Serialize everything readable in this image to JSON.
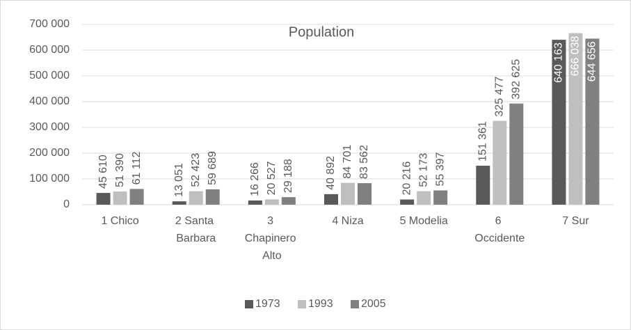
{
  "chart_data": {
    "type": "bar",
    "title": "Population",
    "categories": [
      "1 Chico",
      "2 Santa Barbara",
      "3 Chapinero Alto",
      "4 Niza",
      "5 Modelia",
      "6 Occidente",
      "7 Sur"
    ],
    "series": [
      {
        "name": "1973",
        "color": "#595959",
        "values": [
          45610,
          13051,
          16266,
          40892,
          20216,
          151361,
          640163
        ],
        "value_labels": [
          "45 610",
          "13 051",
          "16 266",
          "40 892",
          "20 216",
          "151 361",
          "640 163"
        ]
      },
      {
        "name": "1993",
        "color": "#bfbfbf",
        "values": [
          51390,
          52423,
          20527,
          84701,
          52173,
          325477,
          666038
        ],
        "value_labels": [
          "51 390",
          "52 423",
          "20 527",
          "84 701",
          "52 173",
          "325 477",
          "666 038"
        ]
      },
      {
        "name": "2005",
        "color": "#808080",
        "values": [
          61112,
          59689,
          29188,
          83562,
          55397,
          392625,
          644656
        ],
        "value_labels": [
          "61 112",
          "59 689",
          "29 188",
          "83 562",
          "55 397",
          "392 625",
          "644 656"
        ]
      }
    ],
    "ylim": [
      0,
      700000
    ],
    "yticks": [
      0,
      {
        "value": 100000,
        "label": "100 000"
      },
      {
        "value": 200000,
        "label": "200 000"
      },
      {
        "value": 300000,
        "label": "300 000"
      },
      {
        "value": 400000,
        "label": "400 000"
      },
      {
        "value": 500000,
        "label": "500 000"
      },
      {
        "value": 600000,
        "label": "600 000"
      },
      {
        "value": 700000,
        "label": "700 000"
      }
    ],
    "grid": true,
    "legend": "bottom"
  }
}
